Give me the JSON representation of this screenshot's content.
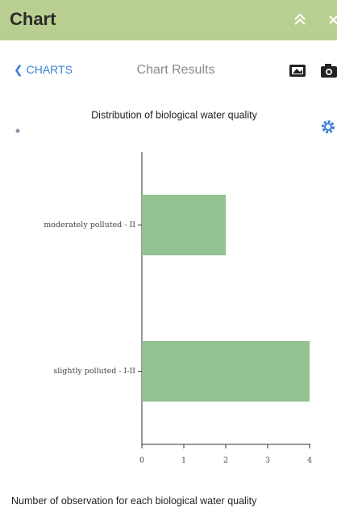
{
  "header": {
    "title": "Chart"
  },
  "nav": {
    "back": "CHARTS",
    "title": "Chart Results"
  },
  "chart_data": {
    "type": "bar",
    "orientation": "horizontal",
    "title": "Distribution of biological water quality",
    "categories": [
      "moderately polluted - II",
      "slightly polluted - I-II"
    ],
    "values": [
      2,
      4
    ],
    "color": "#93c293",
    "xlim": [
      0,
      4
    ],
    "xticks": [
      0,
      1,
      2,
      3,
      4
    ]
  },
  "caption": "Number of observation for each biological water quality"
}
